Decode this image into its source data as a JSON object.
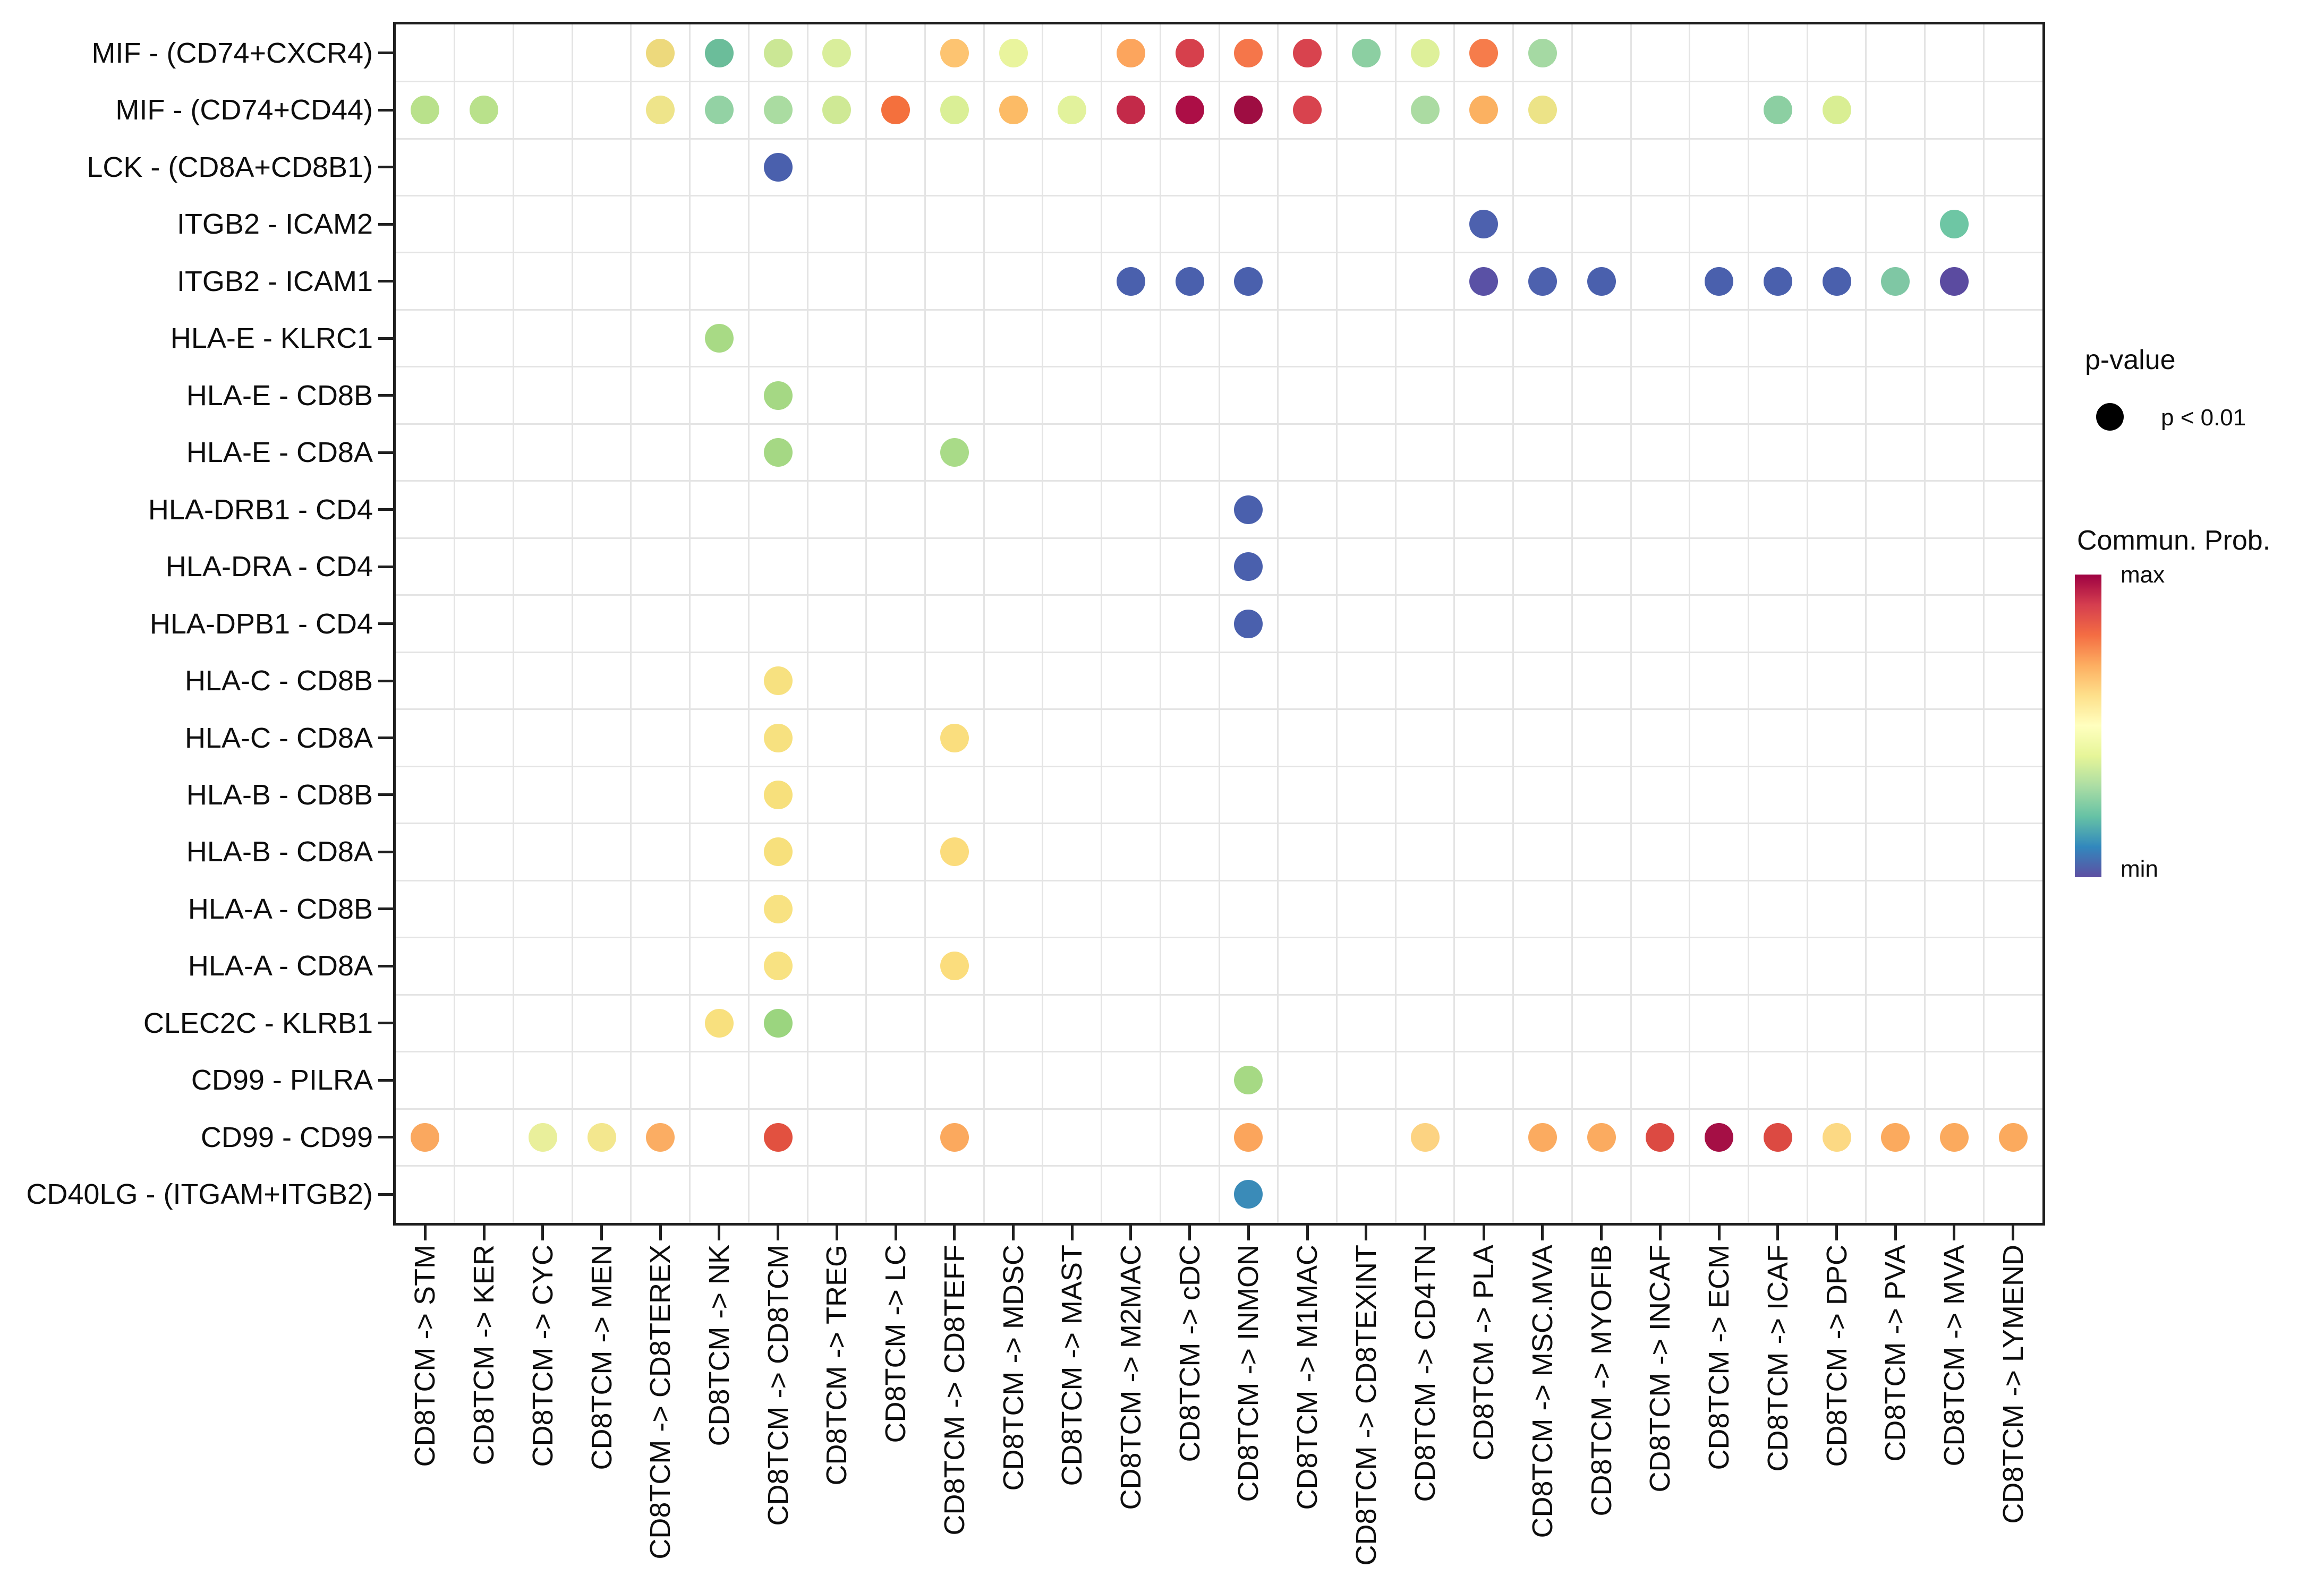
{
  "chart_data": {
    "type": "scatter",
    "title": "",
    "xlabel": "",
    "ylabel": "",
    "grid": true,
    "x_categories": [
      "CD8TCM -> STM",
      "CD8TCM -> KER",
      "CD8TCM -> CYC",
      "CD8TCM -> MEN",
      "CD8TCM -> CD8TEREX",
      "CD8TCM -> NK",
      "CD8TCM -> CD8TCM",
      "CD8TCM -> TREG",
      "CD8TCM -> LC",
      "CD8TCM -> CD8TEFF",
      "CD8TCM -> MDSC",
      "CD8TCM -> MAST",
      "CD8TCM -> M2MAC",
      "CD8TCM -> cDC",
      "CD8TCM -> INMON",
      "CD8TCM -> M1MAC",
      "CD8TCM -> CD8TEXINT",
      "CD8TCM -> CD4TN",
      "CD8TCM -> PLA",
      "CD8TCM -> MSC.MVA",
      "CD8TCM -> MYOFIB",
      "CD8TCM -> INCAF",
      "CD8TCM -> ECM",
      "CD8TCM -> ICAF",
      "CD8TCM -> DPC",
      "CD8TCM -> PVA",
      "CD8TCM -> MVA",
      "CD8TCM -> LYMEND"
    ],
    "y_categories": [
      "MIF - (CD74+CXCR4)",
      "MIF - (CD74+CD44)",
      "LCK - (CD8A+CD8B1)",
      "ITGB2 - ICAM2",
      "ITGB2 - ICAM1",
      "HLA-E - KLRC1",
      "HLA-E - CD8B",
      "HLA-E - CD8A",
      "HLA-DRB1 - CD4",
      "HLA-DRA - CD4",
      "HLA-DPB1 - CD4",
      "HLA-C - CD8B",
      "HLA-C - CD8A",
      "HLA-B - CD8B",
      "HLA-B - CD8A",
      "HLA-A - CD8B",
      "HLA-A - CD8A",
      "CLEC2C - KLRB1",
      "CD99 - PILRA",
      "CD99 - CD99",
      "CD40LG - (ITGAM+ITGB2)"
    ],
    "dot_meaning": "all dots represent p < 0.01; color encodes communication probability from min (blue-purple) to max (dark red)",
    "dots": [
      [
        0,
        4,
        "#edd97c"
      ],
      [
        0,
        5,
        "#6bbd9a"
      ],
      [
        0,
        6,
        "#cbe795"
      ],
      [
        0,
        7,
        "#d9ee9b"
      ],
      [
        0,
        9,
        "#fdc471"
      ],
      [
        0,
        10,
        "#e9f49d"
      ],
      [
        0,
        12,
        "#fca55d"
      ],
      [
        0,
        13,
        "#d6404c"
      ],
      [
        0,
        14,
        "#f5764a"
      ],
      [
        0,
        15,
        "#d8434e"
      ],
      [
        0,
        16,
        "#8ccfa2"
      ],
      [
        0,
        17,
        "#def09a"
      ],
      [
        0,
        18,
        "#f67c4b"
      ],
      [
        0,
        19,
        "#a5d9a3"
      ],
      [
        1,
        0,
        "#b9e18b"
      ],
      [
        1,
        1,
        "#b9e18b"
      ],
      [
        1,
        4,
        "#eee48a"
      ],
      [
        1,
        5,
        "#93d2a4"
      ],
      [
        1,
        6,
        "#aadca1"
      ],
      [
        1,
        7,
        "#cfe995"
      ],
      [
        1,
        8,
        "#f4703d"
      ],
      [
        1,
        9,
        "#daef96"
      ],
      [
        1,
        10,
        "#fcbb66"
      ],
      [
        1,
        11,
        "#e2f29c"
      ],
      [
        1,
        12,
        "#c32a49"
      ],
      [
        1,
        13,
        "#ac0e46"
      ],
      [
        1,
        14,
        "#9e0d42"
      ],
      [
        1,
        15,
        "#d8434e"
      ],
      [
        1,
        17,
        "#abdba2"
      ],
      [
        1,
        18,
        "#fbb161"
      ],
      [
        1,
        19,
        "#ece387"
      ],
      [
        1,
        23,
        "#8ccfa2"
      ],
      [
        1,
        24,
        "#d9ee93"
      ],
      [
        2,
        6,
        "#4a60ad"
      ],
      [
        3,
        18,
        "#4d61ae"
      ],
      [
        3,
        26,
        "#6ec6a4"
      ],
      [
        4,
        12,
        "#4a60ad"
      ],
      [
        4,
        13,
        "#4a60ad"
      ],
      [
        4,
        14,
        "#4a60ad"
      ],
      [
        4,
        18,
        "#5a51a5"
      ],
      [
        4,
        19,
        "#4d61ae"
      ],
      [
        4,
        20,
        "#4a60ad"
      ],
      [
        4,
        22,
        "#4a60ad"
      ],
      [
        4,
        23,
        "#4a60ad"
      ],
      [
        4,
        24,
        "#4a60ad"
      ],
      [
        4,
        25,
        "#7fc7a4"
      ],
      [
        4,
        26,
        "#5b4ba0"
      ],
      [
        5,
        5,
        "#a8da85"
      ],
      [
        6,
        6,
        "#a5d884"
      ],
      [
        7,
        6,
        "#a5d884"
      ],
      [
        7,
        9,
        "#a9db88"
      ],
      [
        8,
        14,
        "#4a60ad"
      ],
      [
        9,
        14,
        "#4a60ad"
      ],
      [
        10,
        14,
        "#4a60ad"
      ],
      [
        11,
        6,
        "#f7e180"
      ],
      [
        12,
        6,
        "#f7e180"
      ],
      [
        12,
        9,
        "#fade7e"
      ],
      [
        13,
        6,
        "#f7e07c"
      ],
      [
        14,
        6,
        "#f7e07c"
      ],
      [
        14,
        9,
        "#fbdc7c"
      ],
      [
        15,
        6,
        "#f8e282"
      ],
      [
        16,
        6,
        "#f8e282"
      ],
      [
        16,
        9,
        "#fbdd7d"
      ],
      [
        17,
        5,
        "#f8e07e"
      ],
      [
        17,
        6,
        "#9bd57f"
      ],
      [
        18,
        14,
        "#a6d984"
      ],
      [
        19,
        0,
        "#faa85f"
      ],
      [
        19,
        2,
        "#e9ef9b"
      ],
      [
        19,
        3,
        "#f3e78e"
      ],
      [
        19,
        4,
        "#fbad63"
      ],
      [
        19,
        6,
        "#e25140"
      ],
      [
        19,
        9,
        "#fba95e"
      ],
      [
        19,
        14,
        "#fba55c"
      ],
      [
        19,
        17,
        "#fcd382"
      ],
      [
        19,
        19,
        "#fbab60"
      ],
      [
        19,
        20,
        "#fbab60"
      ],
      [
        19,
        21,
        "#dc4a42"
      ],
      [
        19,
        22,
        "#a50f45"
      ],
      [
        19,
        23,
        "#dc4a42"
      ],
      [
        19,
        24,
        "#fcd984"
      ],
      [
        19,
        25,
        "#fbaa5e"
      ],
      [
        19,
        26,
        "#fbaa5e"
      ],
      [
        19,
        27,
        "#fbaa5e"
      ],
      [
        20,
        14,
        "#3a8bb8"
      ]
    ],
    "legend_position": "right"
  },
  "legend": {
    "pvalue_title": "p-value",
    "pvalue_item": "p < 0.01",
    "pvalue_dot_color": "#000000",
    "colorbar_title": "Commun. Prob.",
    "max_label": "max",
    "min_label": "min",
    "colorbar_colors_top_to_bottom": [
      "#9e0142",
      "#d53e4f",
      "#f46d43",
      "#fdae61",
      "#fee08b",
      "#ffffbf",
      "#e6f598",
      "#abdda4",
      "#66c2a5",
      "#3288bd",
      "#5e4fa2"
    ]
  }
}
